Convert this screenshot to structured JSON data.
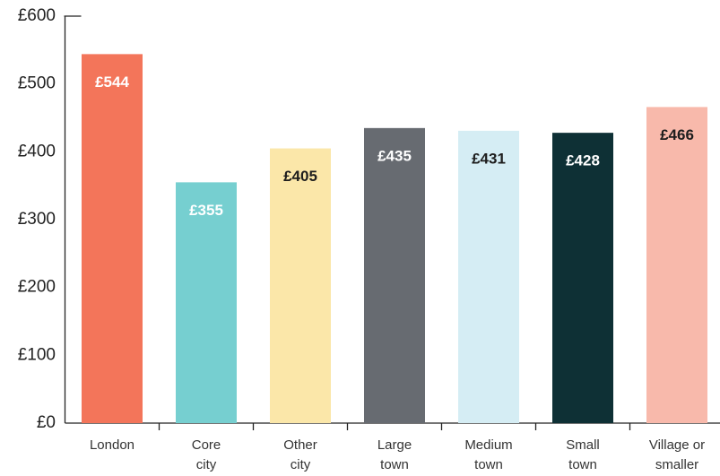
{
  "chart_data": {
    "type": "bar",
    "categories": [
      "London",
      "Core city",
      "Other city",
      "Large town",
      "Medium town",
      "Small town",
      "Village or smaller"
    ],
    "values": [
      544,
      355,
      405,
      435,
      431,
      428,
      466
    ],
    "value_labels": [
      "£544",
      "£355",
      "£405",
      "£435",
      "£431",
      "£428",
      "£466"
    ],
    "colors": [
      "#f3755a",
      "#76cfd0",
      "#fbe7a9",
      "#676b71",
      "#d5edf4",
      "#0e3035",
      "#f8b9ab"
    ],
    "label_colors": [
      "#ffffff",
      "#ffffff",
      "#1d1d1d",
      "#ffffff",
      "#1d1d1d",
      "#ffffff",
      "#1d1d1d"
    ],
    "ylim": [
      0,
      600
    ],
    "yticks": [
      {
        "value": 0,
        "label": "£0"
      },
      {
        "value": 100,
        "label": "£100"
      },
      {
        "value": 200,
        "label": "£200"
      },
      {
        "value": 300,
        "label": "£300"
      },
      {
        "value": 400,
        "label": "£400"
      },
      {
        "value": 500,
        "label": "£500"
      },
      {
        "value": 600,
        "label": "£600"
      }
    ],
    "grid": false
  }
}
